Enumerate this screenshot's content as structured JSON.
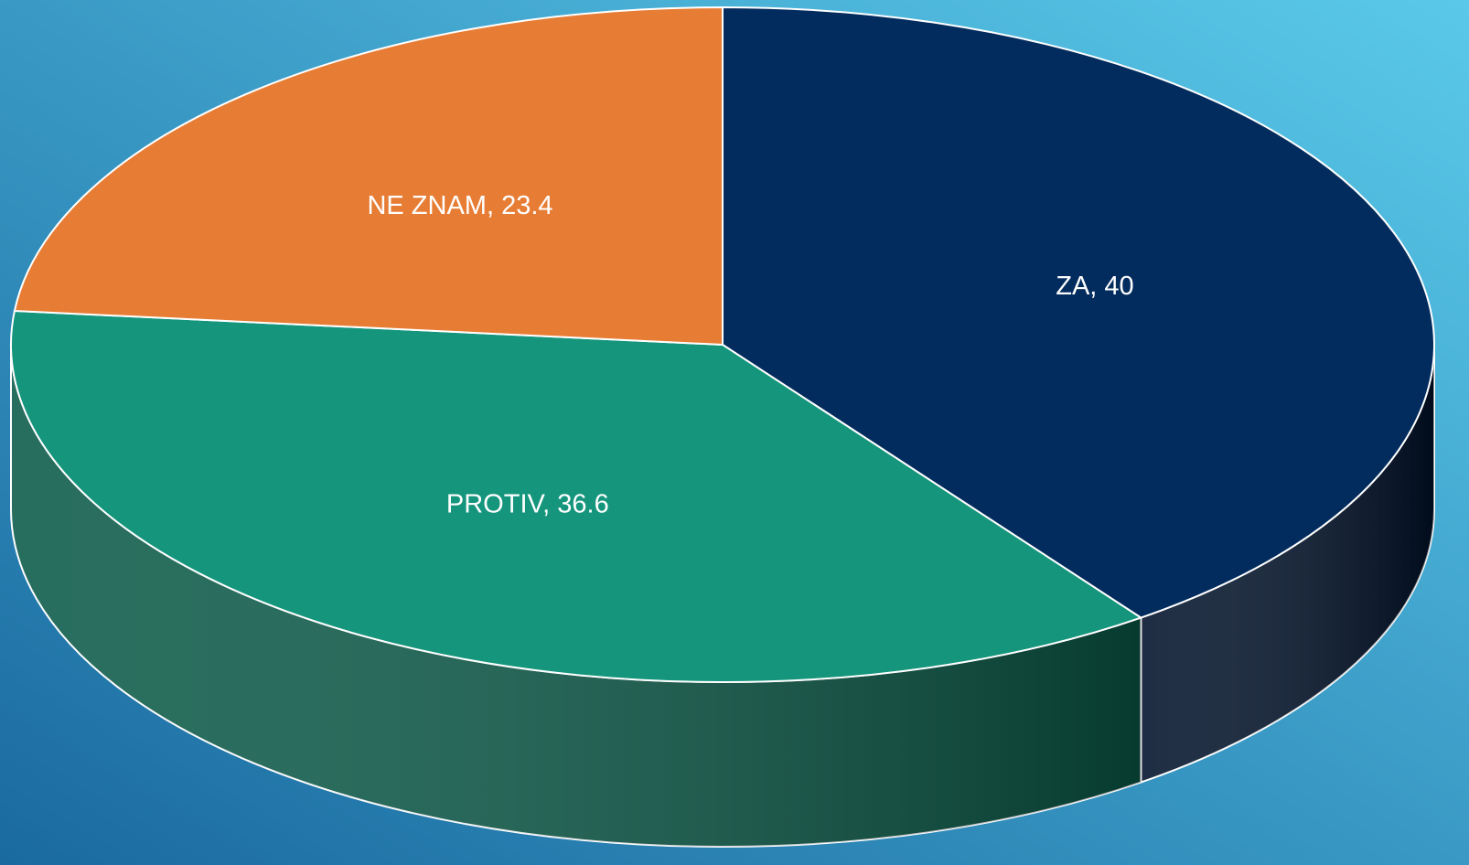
{
  "chart_data": {
    "type": "pie",
    "categories": [
      "ZA",
      "PROTIV",
      "NE ZNAM"
    ],
    "values": [
      40,
      36.6,
      23.4
    ],
    "value_labels": [
      "ZA, 40",
      "PROTIV, 36.6",
      "NE ZNAM, 23.4"
    ],
    "colors": [
      "#032c5e",
      "#14957c",
      "#e77d35"
    ],
    "side_colors": [
      "#00112a",
      "#0a5a48",
      "#a4561f"
    ]
  }
}
